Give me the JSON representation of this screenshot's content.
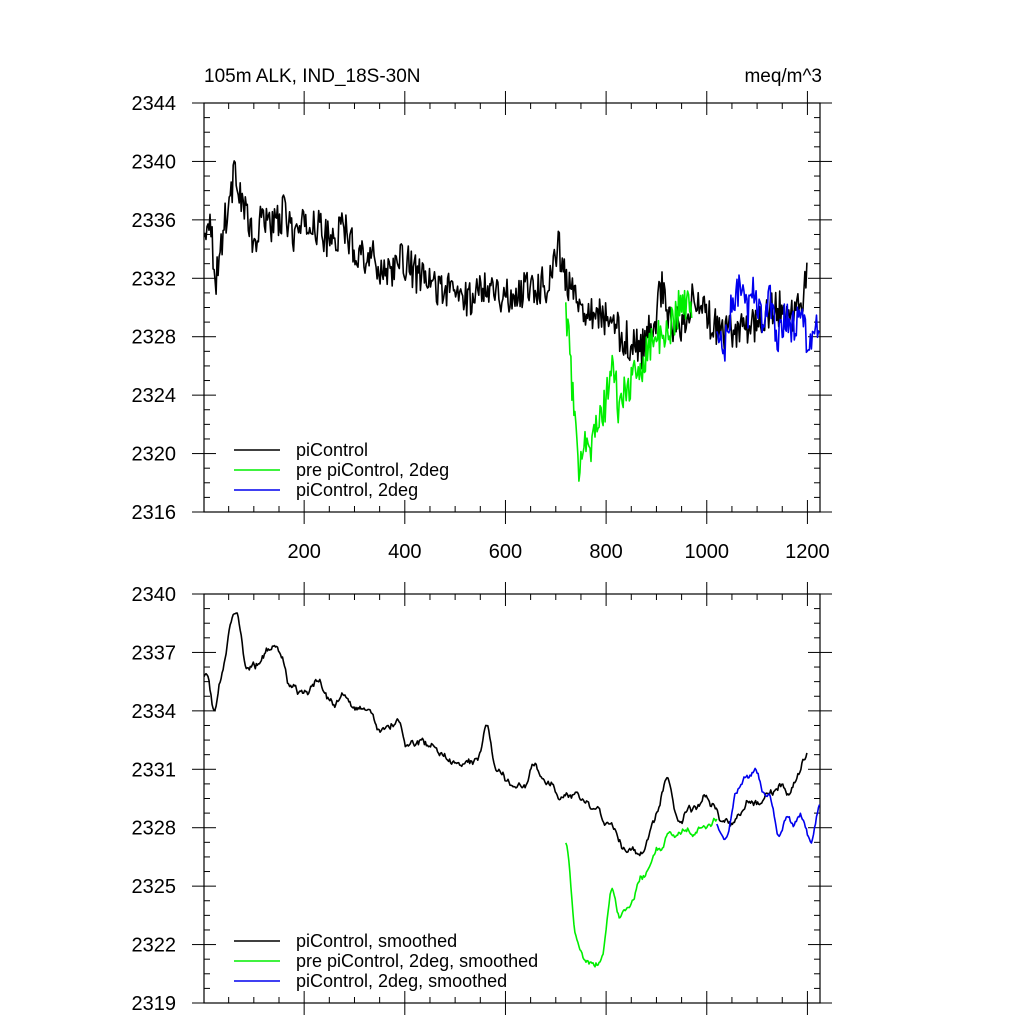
{
  "figure": {
    "title_left": "105m ALK, IND_18S-30N",
    "title_right": "meq/m^3"
  },
  "colors": {
    "piControl": "#000000",
    "pre_piControl_2deg": "#00ee00",
    "piControl_2deg": "#0000ee"
  },
  "chart_data": [
    {
      "type": "line",
      "title": "105m ALK, IND_18S-30N",
      "units": "meq/m^3",
      "xlim": [
        1,
        1225
      ],
      "ylim": [
        2316,
        2344
      ],
      "x_ticks": [
        200,
        400,
        600,
        800,
        1000,
        1200
      ],
      "y_ticks": [
        2316,
        2320,
        2324,
        2328,
        2332,
        2336,
        2340,
        2344
      ],
      "legend": "bottom-left",
      "series": [
        {
          "name": "piControl",
          "color": "#000000",
          "x_range": [
            1,
            1200
          ],
          "points": [
            [
              1,
              2334.5
            ],
            [
              10,
              2336.8
            ],
            [
              25,
              2332.0
            ],
            [
              40,
              2335.5
            ],
            [
              55,
              2338.0
            ],
            [
              65,
              2339.5
            ],
            [
              75,
              2337.5
            ],
            [
              85,
              2336.5
            ],
            [
              100,
              2334.0
            ],
            [
              120,
              2336.5
            ],
            [
              140,
              2335.5
            ],
            [
              160,
              2336.5
            ],
            [
              180,
              2335.0
            ],
            [
              200,
              2335.5
            ],
            [
              220,
              2335.8
            ],
            [
              250,
              2334.5
            ],
            [
              280,
              2335.5
            ],
            [
              300,
              2334.0
            ],
            [
              330,
              2333.5
            ],
            [
              360,
              2332.5
            ],
            [
              400,
              2333.2
            ],
            [
              430,
              2332.0
            ],
            [
              460,
              2331.5
            ],
            [
              500,
              2331.0
            ],
            [
              530,
              2330.5
            ],
            [
              560,
              2331.8
            ],
            [
              590,
              2331.0
            ],
            [
              610,
              2330.5
            ],
            [
              640,
              2331.5
            ],
            [
              680,
              2331.5
            ],
            [
              700,
              2333.5
            ],
            [
              705,
              2334.5
            ],
            [
              720,
              2331.5
            ],
            [
              740,
              2331.0
            ],
            [
              760,
              2330.0
            ],
            [
              790,
              2329.5
            ],
            [
              820,
              2328.5
            ],
            [
              850,
              2327.5
            ],
            [
              870,
              2327.0
            ],
            [
              880,
              2328.0
            ],
            [
              900,
              2329.5
            ],
            [
              910,
              2331.5
            ],
            [
              930,
              2328.5
            ],
            [
              950,
              2329.0
            ],
            [
              970,
              2330.5
            ],
            [
              1000,
              2329.5
            ],
            [
              1030,
              2328.0
            ],
            [
              1060,
              2328.5
            ],
            [
              1100,
              2329.0
            ],
            [
              1140,
              2330.0
            ],
            [
              1170,
              2329.5
            ],
            [
              1190,
              2330.5
            ],
            [
              1200,
              2332.5
            ]
          ]
        },
        {
          "name": "pre piControl, 2deg",
          "color": "#00ee00",
          "x_range": [
            720,
            970
          ],
          "points": [
            [
              720,
              2330.0
            ],
            [
              730,
              2326.0
            ],
            [
              737,
              2322.0
            ],
            [
              745,
              2319.0
            ],
            [
              755,
              2321.5
            ],
            [
              770,
              2320.5
            ],
            [
              785,
              2322.0
            ],
            [
              800,
              2323.5
            ],
            [
              812,
              2326.5
            ],
            [
              825,
              2323.0
            ],
            [
              840,
              2324.5
            ],
            [
              855,
              2325.0
            ],
            [
              870,
              2326.0
            ],
            [
              885,
              2327.5
            ],
            [
              900,
              2328.0
            ],
            [
              915,
              2327.5
            ],
            [
              930,
              2329.0
            ],
            [
              945,
              2330.0
            ],
            [
              958,
              2330.5
            ],
            [
              970,
              2329.5
            ]
          ]
        },
        {
          "name": "piControl, 2deg",
          "color": "#0000ee",
          "x_range": [
            1020,
            1225
          ],
          "points": [
            [
              1020,
              2328.0
            ],
            [
              1035,
              2327.0
            ],
            [
              1050,
              2330.0
            ],
            [
              1065,
              2331.5
            ],
            [
              1080,
              2329.5
            ],
            [
              1095,
              2331.5
            ],
            [
              1110,
              2329.0
            ],
            [
              1125,
              2330.5
            ],
            [
              1140,
              2328.0
            ],
            [
              1155,
              2329.5
            ],
            [
              1170,
              2328.5
            ],
            [
              1185,
              2329.5
            ],
            [
              1200,
              2328.0
            ],
            [
              1212,
              2327.5
            ],
            [
              1225,
              2329.0
            ]
          ]
        }
      ]
    },
    {
      "type": "line",
      "xlim": [
        1,
        1225
      ],
      "ylim": [
        2319,
        2340
      ],
      "x_ticks": [
        200,
        400,
        600,
        800,
        1000,
        1200
      ],
      "y_ticks": [
        2319,
        2322,
        2325,
        2328,
        2331,
        2334,
        2337,
        2340
      ],
      "legend": "bottom-left",
      "series": [
        {
          "name": "piControl, smoothed",
          "color": "#000000",
          "x_range": [
            1,
            1200
          ],
          "points": [
            [
              1,
              2336.0
            ],
            [
              10,
              2336.0
            ],
            [
              20,
              2333.0
            ],
            [
              30,
              2335.0
            ],
            [
              40,
              2336.0
            ],
            [
              55,
              2338.5
            ],
            [
              70,
              2339.2
            ],
            [
              85,
              2336.0
            ],
            [
              100,
              2336.5
            ],
            [
              120,
              2337.0
            ],
            [
              140,
              2337.5
            ],
            [
              160,
              2336.5
            ],
            [
              180,
              2335.0
            ],
            [
              200,
              2335.2
            ],
            [
              230,
              2335.5
            ],
            [
              260,
              2334.5
            ],
            [
              280,
              2335.0
            ],
            [
              300,
              2334.0
            ],
            [
              330,
              2334.0
            ],
            [
              360,
              2333.0
            ],
            [
              380,
              2333.5
            ],
            [
              400,
              2332.5
            ],
            [
              430,
              2332.5
            ],
            [
              460,
              2332.0
            ],
            [
              490,
              2331.5
            ],
            [
              520,
              2331.5
            ],
            [
              550,
              2331.5
            ],
            [
              560,
              2334.0
            ],
            [
              575,
              2331.5
            ],
            [
              600,
              2330.5
            ],
            [
              630,
              2330.0
            ],
            [
              660,
              2331.0
            ],
            [
              690,
              2330.0
            ],
            [
              720,
              2330.0
            ],
            [
              760,
              2329.5
            ],
            [
              800,
              2328.5
            ],
            [
              830,
              2327.5
            ],
            [
              860,
              2326.5
            ],
            [
              880,
              2327.0
            ],
            [
              900,
              2328.5
            ],
            [
              920,
              2331.0
            ],
            [
              940,
              2328.5
            ],
            [
              970,
              2329.0
            ],
            [
              1000,
              2329.5
            ],
            [
              1030,
              2328.5
            ],
            [
              1060,
              2328.0
            ],
            [
              1080,
              2329.5
            ],
            [
              1100,
              2329.0
            ],
            [
              1130,
              2330.0
            ],
            [
              1160,
              2330.0
            ],
            [
              1180,
              2330.5
            ],
            [
              1200,
              2331.8
            ]
          ]
        },
        {
          "name": "pre piControl, 2deg, smoothed",
          "color": "#00ee00",
          "x_range": [
            720,
            1020
          ],
          "points": [
            [
              720,
              2328.0
            ],
            [
              730,
              2325.0
            ],
            [
              740,
              2322.0
            ],
            [
              755,
              2321.5
            ],
            [
              770,
              2321.0
            ],
            [
              780,
              2320.5
            ],
            [
              795,
              2321.5
            ],
            [
              805,
              2324.0
            ],
            [
              815,
              2325.5
            ],
            [
              825,
              2323.0
            ],
            [
              840,
              2324.0
            ],
            [
              855,
              2324.5
            ],
            [
              870,
              2325.5
            ],
            [
              885,
              2326.0
            ],
            [
              900,
              2327.0
            ],
            [
              920,
              2327.5
            ],
            [
              940,
              2327.5
            ],
            [
              960,
              2328.0
            ],
            [
              980,
              2327.5
            ],
            [
              1000,
              2328.0
            ],
            [
              1020,
              2328.5
            ]
          ]
        },
        {
          "name": "piControl, 2deg, smoothed",
          "color": "#0000ee",
          "x_range": [
            1020,
            1225
          ],
          "points": [
            [
              1020,
              2329.0
            ],
            [
              1035,
              2327.0
            ],
            [
              1050,
              2329.0
            ],
            [
              1065,
              2330.0
            ],
            [
              1080,
              2331.0
            ],
            [
              1095,
              2331.5
            ],
            [
              1110,
              2330.0
            ],
            [
              1125,
              2329.5
            ],
            [
              1140,
              2327.5
            ],
            [
              1155,
              2328.5
            ],
            [
              1170,
              2328.0
            ],
            [
              1185,
              2329.0
            ],
            [
              1200,
              2327.5
            ],
            [
              1212,
              2327.5
            ],
            [
              1225,
              2329.0
            ]
          ]
        }
      ]
    }
  ]
}
